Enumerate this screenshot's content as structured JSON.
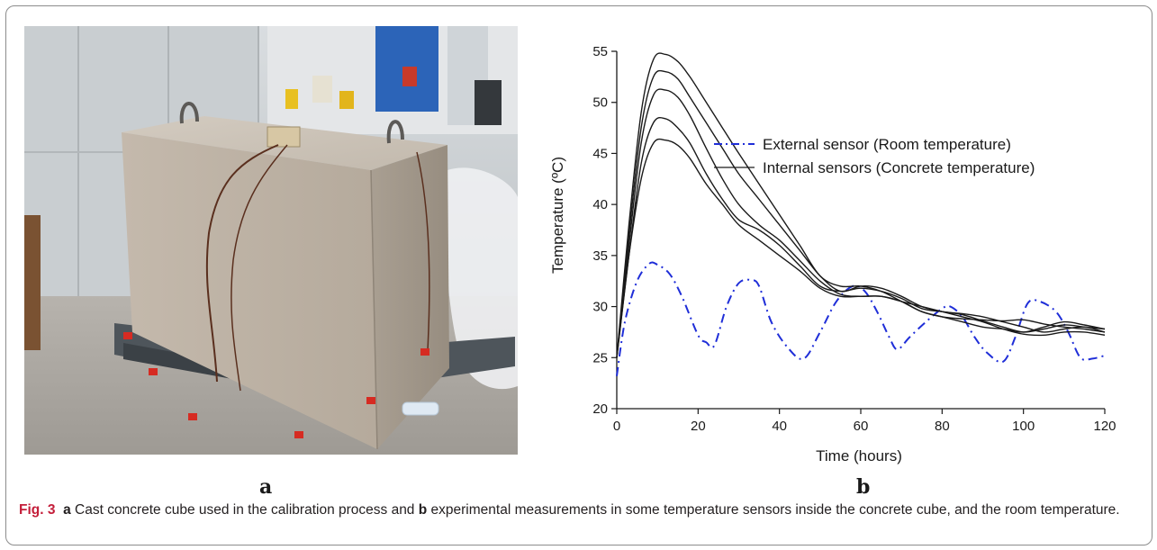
{
  "figure": {
    "panel_a_label": "a",
    "panel_b_label": "b",
    "caption": {
      "fig_label": "Fig. 3",
      "a": "a",
      "part1": " Cast concrete cube used in the calibration process and ",
      "b": "b",
      "part2": " experimental measurements in some temperature sensors inside the concrete cube, and the room temperature."
    }
  },
  "chart_data": {
    "type": "line",
    "xlabel": "Time (hours)",
    "ylabel": "Temperature (ºC)",
    "xlim": [
      0,
      120
    ],
    "ylim": [
      20,
      55
    ],
    "xticks": [
      0,
      20,
      40,
      60,
      80,
      100,
      120
    ],
    "yticks": [
      20,
      25,
      30,
      35,
      40,
      45,
      50,
      55
    ],
    "legend_position": "top-right",
    "legend": [
      {
        "label": "External sensor (Room temperature)",
        "style": "dash-dot",
        "color": "#1f2ed8"
      },
      {
        "label": "Internal sensors (Concrete temperature)",
        "style": "solid",
        "color": "#1a1a1a"
      }
    ],
    "series": [
      {
        "group": "external",
        "color": "#1f2ed8",
        "x": [
          0,
          2,
          5,
          8,
          10,
          13,
          16,
          20,
          22,
          24,
          27,
          30,
          33,
          35,
          38,
          42,
          46,
          50,
          54,
          58,
          61,
          64,
          67,
          69,
          72,
          76,
          80,
          82,
          85,
          88,
          91,
          95,
          98,
          101,
          104,
          108,
          111,
          114,
          117,
          120
        ],
        "y": [
          23.2,
          28.5,
          32.5,
          34.2,
          34.1,
          33.2,
          31,
          27.2,
          26.5,
          26.2,
          30,
          32.3,
          32.6,
          32,
          28.5,
          26,
          24.9,
          27.5,
          30.5,
          32,
          31.5,
          29.5,
          27,
          25.8,
          27,
          28.5,
          29.8,
          30,
          29,
          27,
          25.5,
          24.6,
          27,
          30.3,
          30.5,
          29.5,
          27.5,
          25,
          24.9,
          25.2
        ]
      },
      {
        "group": "internal",
        "color": "#1a1a1a",
        "x": [
          0,
          3,
          6,
          9,
          12,
          15,
          18,
          22,
          26,
          30,
          35,
          40,
          45,
          50,
          55,
          60,
          65,
          70,
          75,
          80,
          85,
          90,
          95,
          100,
          105,
          110,
          115,
          120
        ],
        "y": [
          25,
          38,
          49,
          54.2,
          54.7,
          54,
          52.5,
          50,
          47.5,
          45,
          42,
          39,
          36,
          33,
          32,
          32,
          31.5,
          30.5,
          29.5,
          29,
          28.5,
          28,
          27.8,
          27.5,
          28,
          28.5,
          28.2,
          27.8
        ]
      },
      {
        "group": "internal",
        "color": "#1a1a1a",
        "x": [
          0,
          3,
          6,
          9,
          12,
          15,
          18,
          22,
          26,
          30,
          35,
          40,
          45,
          50,
          55,
          60,
          65,
          70,
          75,
          80,
          85,
          90,
          95,
          100,
          105,
          110,
          115,
          120
        ],
        "y": [
          25,
          37,
          47.5,
          52.5,
          53,
          52.3,
          50.5,
          48,
          45.5,
          43,
          40.5,
          38,
          35.5,
          33,
          31.5,
          32,
          31.8,
          31,
          30,
          29.5,
          29.3,
          29,
          28.5,
          28,
          27.5,
          27.8,
          28,
          27.5
        ]
      },
      {
        "group": "internal",
        "color": "#1a1a1a",
        "x": [
          0,
          3,
          6,
          9,
          12,
          15,
          18,
          22,
          26,
          30,
          35,
          40,
          45,
          50,
          55,
          60,
          65,
          70,
          75,
          80,
          85,
          90,
          95,
          100,
          105,
          110,
          115,
          120
        ],
        "y": [
          25,
          36,
          46,
          50.7,
          51.2,
          50.5,
          48.7,
          45.5,
          42.5,
          40,
          38,
          36.5,
          34.5,
          32.5,
          31.2,
          31,
          31,
          30.5,
          29.5,
          29,
          28.8,
          28.7,
          28.6,
          28.7,
          28.3,
          28,
          27.8,
          27.5
        ]
      },
      {
        "group": "internal",
        "color": "#1a1a1a",
        "x": [
          0,
          3,
          6,
          9,
          12,
          15,
          18,
          22,
          26,
          30,
          35,
          40,
          45,
          50,
          55,
          60,
          65,
          70,
          75,
          80,
          85,
          90,
          95,
          100,
          105,
          110,
          115,
          120
        ],
        "y": [
          25,
          35,
          44,
          48,
          48.4,
          47.5,
          46,
          43,
          40.5,
          38.5,
          37.5,
          36,
          34,
          32,
          31.5,
          31.8,
          31.5,
          30.8,
          29.8,
          29.5,
          29.2,
          28.6,
          28,
          27.5,
          27.8,
          28.2,
          28,
          27.8
        ]
      },
      {
        "group": "internal",
        "color": "#1a1a1a",
        "x": [
          0,
          3,
          6,
          9,
          12,
          15,
          18,
          22,
          26,
          30,
          35,
          40,
          45,
          50,
          55,
          60,
          65,
          70,
          75,
          80,
          85,
          90,
          95,
          100,
          105,
          110,
          115,
          120
        ],
        "y": [
          25,
          35,
          42.5,
          46,
          46.3,
          45.8,
          44.5,
          42,
          40,
          38,
          36.5,
          35,
          33.5,
          31.8,
          31,
          31,
          31,
          30.5,
          30,
          29.5,
          29,
          28.5,
          27.8,
          27.3,
          27.2,
          27.5,
          27.5,
          27.2
        ]
      }
    ]
  }
}
